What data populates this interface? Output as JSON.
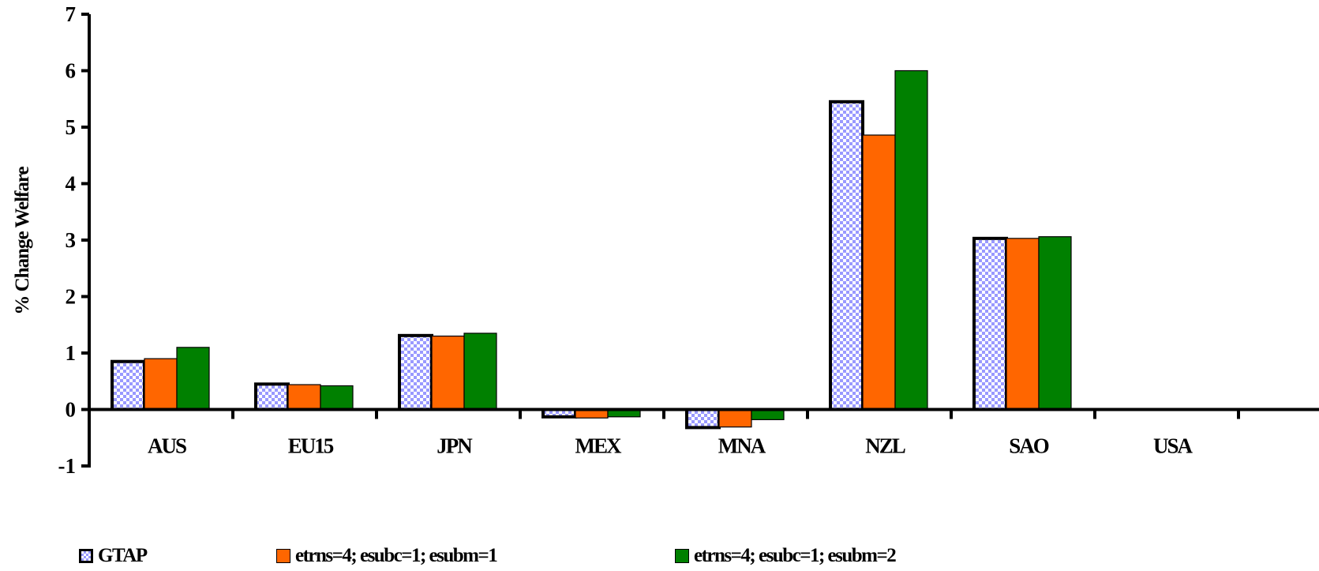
{
  "chart_data": {
    "type": "bar",
    "ylabel": "% Change Welfare",
    "xlabel": "",
    "ylim": [
      -1,
      7
    ],
    "yticks": [
      -1,
      0,
      1,
      2,
      3,
      4,
      5,
      6,
      7
    ],
    "categories": [
      "AUS",
      "EU15",
      "JPN",
      "MEX",
      "MNA",
      "NZL",
      "SAO",
      "USA"
    ],
    "series": [
      {
        "name": "GTAP",
        "color": "#9999ff",
        "pattern": "checker",
        "values": [
          0.85,
          0.45,
          1.31,
          -0.13,
          -0.32,
          5.45,
          3.03,
          0
        ]
      },
      {
        "name": "etrns=4; esubc=1; esubm=1",
        "color": "#ff6600",
        "pattern": "solid",
        "values": [
          0.9,
          0.44,
          1.3,
          -0.15,
          -0.31,
          4.86,
          3.03,
          0
        ]
      },
      {
        "name": "etrns=4; esubc=1; esubm=2",
        "color": "#008000",
        "pattern": "solid",
        "values": [
          1.1,
          0.42,
          1.35,
          -0.13,
          -0.18,
          6.0,
          3.06,
          0
        ]
      }
    ],
    "legend_position": "bottom",
    "grid": false
  }
}
